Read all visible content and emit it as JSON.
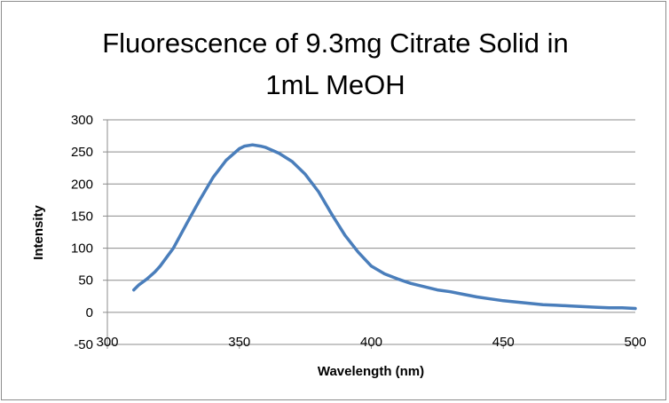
{
  "chart_data": {
    "type": "line",
    "title_lines": [
      "Fluorescence of 9.3mg Citrate Solid in",
      "1mL MeOH"
    ],
    "xlabel": "Wavelength (nm)",
    "ylabel": "Intensity",
    "xlim": [
      300,
      500
    ],
    "ylim": [
      -50,
      300
    ],
    "x_ticks": [
      "300",
      "350",
      "400",
      "450",
      "500"
    ],
    "y_ticks": [
      "-50",
      "0",
      "50",
      "100",
      "150",
      "200",
      "250",
      "300"
    ],
    "grid": "horizontal",
    "legend": "none",
    "series": [
      {
        "name": "Intensity",
        "color": "#4a7ebb",
        "x": [
          310,
          312,
          315,
          318,
          320,
          325,
          330,
          335,
          340,
          345,
          350,
          352,
          355,
          358,
          360,
          365,
          370,
          375,
          380,
          385,
          390,
          395,
          400,
          405,
          410,
          415,
          420,
          425,
          430,
          435,
          440,
          445,
          450,
          455,
          460,
          465,
          470,
          475,
          480,
          485,
          490,
          495,
          500
        ],
        "y": [
          35,
          43,
          52,
          63,
          72,
          100,
          138,
          175,
          210,
          237,
          255,
          259,
          261,
          259,
          257,
          248,
          235,
          215,
          188,
          153,
          120,
          94,
          72,
          60,
          52,
          45,
          40,
          35,
          32,
          28,
          24,
          21,
          18,
          16,
          14,
          12,
          11,
          10,
          9,
          8,
          7,
          7,
          6
        ]
      }
    ]
  }
}
